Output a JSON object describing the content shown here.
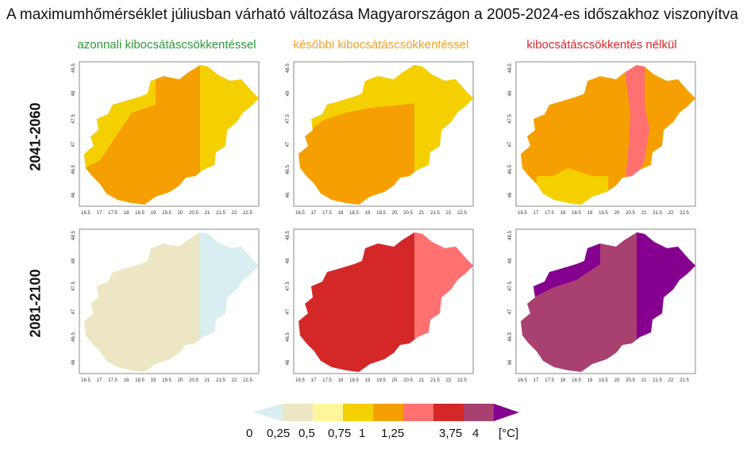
{
  "title": "A maximumhőmérséklet júliusban várható változása Magyarországon a 2005-2024-es időszakhoz viszonyítva",
  "columns": [
    {
      "label": "azonnali kibocsátáscsökkentéssel",
      "color": "#2e9a3a"
    },
    {
      "label": "későbbi kibocsátáscsökkentéssel",
      "color": "#f0a030"
    },
    {
      "label": "kibocsátáscsökkentés nélkül",
      "color": "#d8282c"
    }
  ],
  "rows": [
    {
      "label": "2041-2060"
    },
    {
      "label": "2081-2100"
    }
  ],
  "axes": {
    "x_ticks": [
      "16.5",
      "17",
      "17.5",
      "18",
      "18.5",
      "19",
      "19.5",
      "20",
      "20.5",
      "21",
      "21.5",
      "22",
      "22.5"
    ],
    "y_ticks": [
      "48.5",
      "48",
      "47.5",
      "47",
      "46.5",
      "46"
    ]
  },
  "legend": {
    "unit": "[°C]",
    "ticks": [
      "0",
      "0,25",
      "0,5",
      "0,75",
      "1",
      "1,25",
      "3,75",
      "4"
    ],
    "colors": [
      "#d8eef0",
      "#ece6c4",
      "#fff59a",
      "#f5d000",
      "#f5a000",
      "#ff7070",
      "#d42828",
      "#a84070",
      "#860090"
    ]
  },
  "panels": [
    {
      "row": 0,
      "col": 0,
      "fill": "#f5a000",
      "east_fill": "#f5d000",
      "west_fill": "#f5d000"
    },
    {
      "row": 0,
      "col": 1,
      "fill": "#f5a000",
      "east_fill": "#f5d000",
      "north_fill": "#f5d000"
    },
    {
      "row": 0,
      "col": 2,
      "fill": "#f5a000",
      "east_band_fill": "#ff7070",
      "south_fill": "#f5d000"
    },
    {
      "row": 1,
      "col": 0,
      "fill": "#ece6c4",
      "east_fill": "#d8eef0"
    },
    {
      "row": 1,
      "col": 1,
      "fill": "#d42828",
      "east_fill": "#ff7070"
    },
    {
      "row": 1,
      "col": 2,
      "fill": "#a84070",
      "east_fill": "#860090",
      "west_fill": "#860090"
    }
  ]
}
